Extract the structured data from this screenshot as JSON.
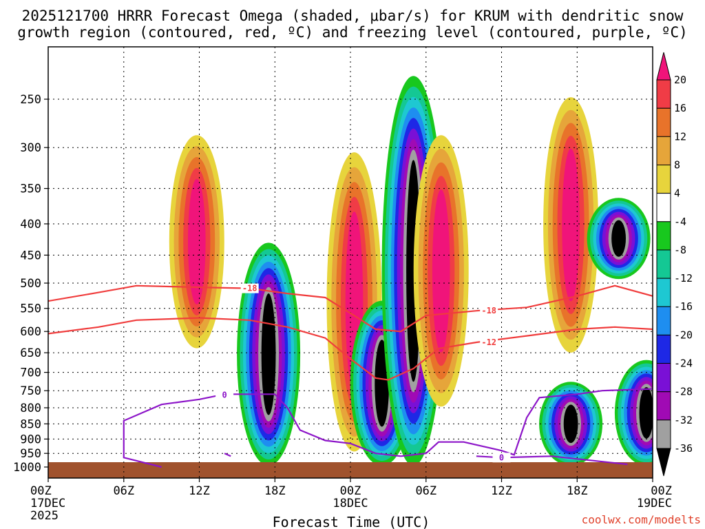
{
  "chart_data": {
    "type": "heatmap",
    "title": "2025121700 HRRR Forecast Omega (shaded, μbar/s) for KRUM with dendritic snow",
    "title_line2": "growth region (contoured, red, ºC) and freezing level (contoured, purple, ºC)",
    "xlabel": "Forecast Time (UTC)",
    "ylabel": "",
    "credit": "coolwx.com/modelts",
    "x_hours": [
      0,
      6,
      12,
      18,
      24,
      30,
      36,
      42,
      48
    ],
    "x_ticks": [
      {
        "hour": 0,
        "label": "00Z",
        "sub1": "17DEC",
        "sub2": "2025"
      },
      {
        "hour": 6,
        "label": "06Z"
      },
      {
        "hour": 12,
        "label": "12Z"
      },
      {
        "hour": 18,
        "label": "18Z"
      },
      {
        "hour": 24,
        "label": "00Z",
        "sub1": "18DEC"
      },
      {
        "hour": 30,
        "label": "06Z"
      },
      {
        "hour": 36,
        "label": "12Z"
      },
      {
        "hour": 42,
        "label": "18Z"
      },
      {
        "hour": 48,
        "label": "00Z",
        "sub1": "19DEC"
      }
    ],
    "y_levels_hpa": [
      250,
      300,
      350,
      400,
      450,
      500,
      550,
      600,
      650,
      700,
      750,
      800,
      850,
      900,
      950,
      1000
    ],
    "ylim_hpa": [
      1010,
      200
    ],
    "colorbar": {
      "tick_labels": [
        "20",
        "16",
        "12",
        "8",
        "4",
        "-4",
        "-8",
        "-12",
        "-16",
        "-20",
        "-24",
        "-28",
        "-32",
        "-36"
      ],
      "bins": [
        {
          "range": ">20",
          "color": "#f0147a"
        },
        {
          "range": "16 to 20",
          "color": "#f03c46"
        },
        {
          "range": "12 to 16",
          "color": "#e8732a"
        },
        {
          "range": "8 to 12",
          "color": "#e6a53a"
        },
        {
          "range": "4 to 8",
          "color": "#e7d43c"
        },
        {
          "range": "-4 to 4",
          "color": "#ffffff"
        },
        {
          "range": "-8 to -4",
          "color": "#18c81e"
        },
        {
          "range": "-12 to -8",
          "color": "#14c894"
        },
        {
          "range": "-16 to -12",
          "color": "#1ec8d2"
        },
        {
          "range": "-20 to -16",
          "color": "#1e8ef0"
        },
        {
          "range": "-24 to -20",
          "color": "#1e28e6"
        },
        {
          "range": "-28 to -24",
          "color": "#7a10d6"
        },
        {
          "range": "-32 to -28",
          "color": "#a00ab4"
        },
        {
          "range": "-36 to -32",
          "color": "#a0a0a0"
        },
        {
          "range": "<-36",
          "color": "#000000"
        }
      ]
    },
    "omega_features": [
      {
        "name": "ascent core 12Z 17DEC",
        "hour_center": 11.8,
        "p_top": 300,
        "p_bottom": 610,
        "value": 24
      },
      {
        "name": "descent core 15-20Z 17DEC",
        "hour_center": 17.5,
        "p_top": 450,
        "p_bottom": 950,
        "value": -40
      },
      {
        "name": "ascent column 00Z 18DEC",
        "hour_center": 24.3,
        "p_top": 320,
        "p_bottom": 900,
        "value": 22
      },
      {
        "name": "descent spike 02Z 18DEC",
        "hour_center": 26.5,
        "p_top": 560,
        "p_bottom": 950,
        "value": -40
      },
      {
        "name": "descent column 04Z 18DEC",
        "hour_center": 29.0,
        "p_top": 240,
        "p_bottom": 950,
        "value": -36
      },
      {
        "name": "ascent column 08Z 18DEC",
        "hour_center": 31.2,
        "p_top": 300,
        "p_bottom": 760,
        "value": 22
      },
      {
        "name": "ascent core 18Z 18DEC",
        "hour_center": 41.5,
        "p_top": 260,
        "p_bottom": 620,
        "value": 24
      },
      {
        "name": "descent core 18Z 18DEC low levels",
        "hour_center": 41.5,
        "p_top": 760,
        "p_bottom": 950,
        "value": -40
      },
      {
        "name": "descent core 00Z 19DEC low levels",
        "hour_center": 47.5,
        "p_top": 700,
        "p_bottom": 950,
        "value": -40
      },
      {
        "name": "descent pocket 21Z 18DEC upper",
        "hour_center": 45.3,
        "p_top": 380,
        "p_bottom": 470,
        "value": -34
      }
    ],
    "dendritic_contours": [
      {
        "label": "-18",
        "color": "#f03c3c",
        "points": [
          [
            0,
            535
          ],
          [
            4,
            518
          ],
          [
            7,
            505
          ],
          [
            12,
            508
          ],
          [
            16,
            510
          ],
          [
            19,
            520
          ],
          [
            22,
            528
          ],
          [
            24,
            560
          ],
          [
            26,
            595
          ],
          [
            28,
            600
          ],
          [
            30,
            565
          ],
          [
            34,
            555
          ],
          [
            38,
            548
          ],
          [
            42,
            525
          ],
          [
            45,
            505
          ],
          [
            48,
            525
          ]
        ]
      },
      {
        "label": "-12",
        "color": "#f03c3c",
        "points": [
          [
            0,
            605
          ],
          [
            4,
            590
          ],
          [
            7,
            575
          ],
          [
            12,
            570
          ],
          [
            16,
            575
          ],
          [
            19,
            590
          ],
          [
            22,
            615
          ],
          [
            24,
            665
          ],
          [
            26,
            715
          ],
          [
            27,
            720
          ],
          [
            29,
            690
          ],
          [
            31,
            640
          ],
          [
            34,
            625
          ],
          [
            38,
            610
          ],
          [
            42,
            595
          ],
          [
            45,
            590
          ],
          [
            48,
            595
          ]
        ]
      }
    ],
    "freezing_contours": [
      {
        "label": "0",
        "color": "#8c14c8",
        "points": [
          [
            9,
            1000
          ],
          [
            6,
            965
          ],
          [
            6,
            840
          ],
          [
            9,
            790
          ],
          [
            12,
            775
          ],
          [
            14,
            760
          ],
          [
            18,
            760
          ],
          [
            19,
            800
          ],
          [
            20,
            870
          ],
          [
            22,
            905
          ],
          [
            24,
            915
          ],
          [
            26,
            950
          ],
          [
            28,
            960
          ],
          [
            30,
            950
          ],
          [
            31,
            910
          ],
          [
            33,
            910
          ],
          [
            36,
            940
          ],
          [
            37,
            955
          ],
          [
            38,
            830
          ],
          [
            39,
            770
          ],
          [
            42,
            760
          ],
          [
            44,
            750
          ],
          [
            48,
            745
          ]
        ]
      },
      {
        "label": "0",
        "color": "#8c14c8",
        "points": [
          [
            14,
            950
          ],
          [
            14.5,
            960
          ]
        ]
      },
      {
        "label": "0",
        "color": "#8c14c8",
        "points": [
          [
            34,
            960
          ],
          [
            36,
            965
          ],
          [
            40,
            960
          ],
          [
            43,
            975
          ],
          [
            46,
            990
          ]
        ]
      }
    ],
    "labels_on_contours": [
      {
        "text": "-18",
        "hour": 16,
        "hpa": 510,
        "color": "#f03c3c"
      },
      {
        "text": "-18",
        "hour": 35,
        "hpa": 555,
        "color": "#f03c3c"
      },
      {
        "text": "-12",
        "hour": 35,
        "hpa": 625,
        "color": "#f03c3c"
      },
      {
        "text": "0",
        "hour": 14,
        "hpa": 762,
        "color": "#8c14c8"
      },
      {
        "text": "0",
        "hour": 36,
        "hpa": 965,
        "color": "#8c14c8"
      }
    ]
  }
}
